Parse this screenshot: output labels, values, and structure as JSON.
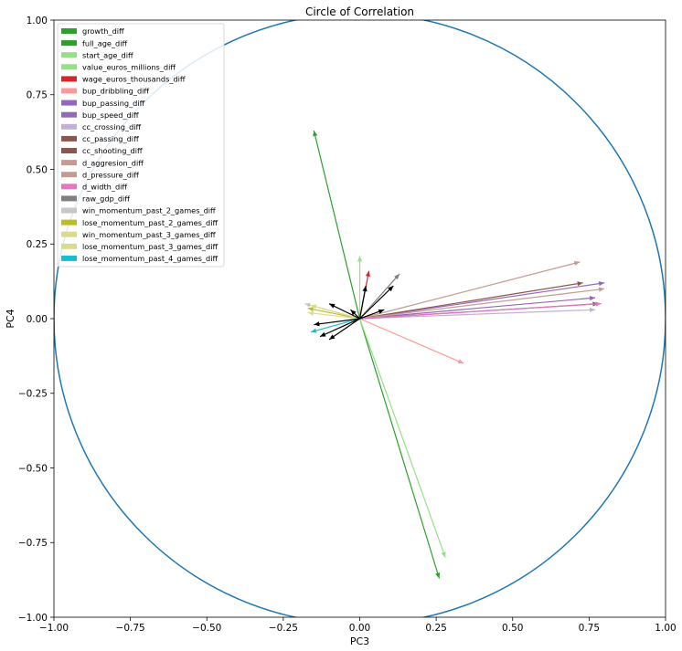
{
  "chart_data": {
    "type": "scatter",
    "title": "Circle of Correlation",
    "xlabel": "PC3",
    "ylabel": "PC4",
    "xlim": [
      -1.0,
      1.0
    ],
    "ylim": [
      -1.0,
      1.0
    ],
    "xticks": [
      "−1.00",
      "−0.75",
      "−0.50",
      "−0.25",
      "0.00",
      "0.25",
      "0.50",
      "0.75",
      "1.00"
    ],
    "yticks": [
      "−1.00",
      "−0.75",
      "−0.50",
      "−0.25",
      "0.00",
      "0.25",
      "0.50",
      "0.75",
      "1.00"
    ],
    "xtick_values": [
      -1.0,
      -0.75,
      -0.5,
      -0.25,
      0.0,
      0.25,
      0.5,
      0.75,
      1.0
    ],
    "ytick_values": [
      -1.0,
      -0.75,
      -0.5,
      -0.25,
      0.0,
      0.25,
      0.5,
      0.75,
      1.0
    ],
    "grid": false,
    "legend_position": "top-left",
    "unit_circle": {
      "radius": 1.0,
      "color": "#1f77b4"
    },
    "legend": [
      {
        "name": "growth_diff",
        "color": "#2ca02c"
      },
      {
        "name": "full_age_diff",
        "color": "#2ca02c"
      },
      {
        "name": "start_age_diff",
        "color": "#98df8a"
      },
      {
        "name": "value_euros_millions_diff",
        "color": "#98df8a"
      },
      {
        "name": "wage_euros_thousands_diff",
        "color": "#d62728"
      },
      {
        "name": "bup_dribbling_diff",
        "color": "#ff9896"
      },
      {
        "name": "bup_passing_diff",
        "color": "#9467bd"
      },
      {
        "name": "bup_speed_diff",
        "color": "#9467bd"
      },
      {
        "name": "cc_crossing_diff",
        "color": "#c5b0d5"
      },
      {
        "name": "cc_passing_diff",
        "color": "#8c564b"
      },
      {
        "name": "cc_shooting_diff",
        "color": "#8c564b"
      },
      {
        "name": "d_aggresion_diff",
        "color": "#c49c94"
      },
      {
        "name": "d_pressure_diff",
        "color": "#c49c94"
      },
      {
        "name": "d_width_diff",
        "color": "#e377c2"
      },
      {
        "name": "raw_gdp_diff",
        "color": "#7f7f7f"
      },
      {
        "name": "win_momentum_past_2_games_diff",
        "color": "#c7c7c7"
      },
      {
        "name": "lose_momentum_past_2_games_diff",
        "color": "#bcbd22"
      },
      {
        "name": "win_momentum_past_3_games_diff",
        "color": "#dbdb8d"
      },
      {
        "name": "lose_momentum_past_3_games_diff",
        "color": "#dbdb8d"
      },
      {
        "name": "lose_momentum_past_4_games_diff",
        "color": "#17becf"
      }
    ],
    "vectors": [
      {
        "x": -0.15,
        "y": 0.63,
        "color": "#2ca02c"
      },
      {
        "x": 0.26,
        "y": -0.87,
        "color": "#2ca02c"
      },
      {
        "x": 0.28,
        "y": -0.8,
        "color": "#98df8a"
      },
      {
        "x": 0.0,
        "y": 0.21,
        "color": "#98df8a"
      },
      {
        "x": 0.03,
        "y": 0.16,
        "color": "#d62728"
      },
      {
        "x": 0.34,
        "y": -0.15,
        "color": "#ff9896"
      },
      {
        "x": 0.8,
        "y": 0.12,
        "color": "#9467bd"
      },
      {
        "x": 0.77,
        "y": 0.07,
        "color": "#9467bd"
      },
      {
        "x": 0.77,
        "y": 0.03,
        "color": "#c5b0d5"
      },
      {
        "x": 0.73,
        "y": 0.12,
        "color": "#8c564b"
      },
      {
        "x": 0.78,
        "y": 0.05,
        "color": "#8c564b"
      },
      {
        "x": 0.72,
        "y": 0.19,
        "color": "#c49c94"
      },
      {
        "x": 0.8,
        "y": 0.1,
        "color": "#c49c94"
      },
      {
        "x": 0.79,
        "y": 0.05,
        "color": "#e377c2"
      },
      {
        "x": 0.13,
        "y": 0.15,
        "color": "#7f7f7f"
      },
      {
        "x": -0.18,
        "y": 0.05,
        "color": "#c7c7c7"
      },
      {
        "x": -0.17,
        "y": 0.035,
        "color": "#bcbd22"
      },
      {
        "x": -0.17,
        "y": 0.02,
        "color": "#dbdb8d"
      },
      {
        "x": -0.16,
        "y": 0.045,
        "color": "#dbdb8d"
      },
      {
        "x": -0.16,
        "y": -0.045,
        "color": "#17becf"
      },
      {
        "x": -0.1,
        "y": 0.05,
        "color": "#000000"
      },
      {
        "x": -0.15,
        "y": -0.02,
        "color": "#000000"
      },
      {
        "x": -0.13,
        "y": -0.06,
        "color": "#000000"
      },
      {
        "x": -0.1,
        "y": -0.07,
        "color": "#000000"
      },
      {
        "x": -0.03,
        "y": 0.03,
        "color": "#000000"
      },
      {
        "x": 0.02,
        "y": 0.11,
        "color": "#000000"
      },
      {
        "x": 0.11,
        "y": 0.11,
        "color": "#000000"
      },
      {
        "x": 0.08,
        "y": 0.03,
        "color": "#000000"
      }
    ]
  }
}
